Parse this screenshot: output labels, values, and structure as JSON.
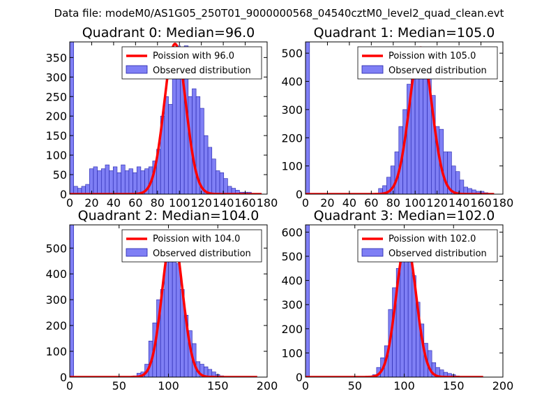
{
  "figure": {
    "suptitle": "Data file: modeM0/AS1G05_250T01_9000000568_04540cztM0_level2_quad_clean.evt",
    "colors": {
      "hist_fill": "#7f7ff5",
      "hist_edge": "#2222aa",
      "poisson_line": "#ff0000"
    }
  },
  "chart_data": [
    {
      "type": "bar",
      "title": "Quadrant 0: Median=96.0",
      "legend": [
        "Poission with 96.0",
        "Observed distribution"
      ],
      "legend_position": "top-right",
      "xlim": [
        0,
        180
      ],
      "ylim": [
        0,
        390
      ],
      "xticks": [
        0,
        20,
        40,
        60,
        80,
        100,
        120,
        140,
        160,
        180
      ],
      "yticks": [
        0,
        50,
        100,
        150,
        200,
        250,
        300,
        350
      ],
      "bin_width": 3.6,
      "bins_start": [
        0,
        3.6,
        7.2,
        10.8,
        14.4,
        18,
        21.6,
        25.2,
        28.8,
        32.4,
        36,
        39.6,
        43.2,
        46.8,
        50.4,
        54,
        57.6,
        61.2,
        64.8,
        68.4,
        72,
        75.6,
        79.2,
        82.8,
        86.4,
        90,
        93.6,
        97.2,
        100.8,
        104.4,
        108,
        111.6,
        115.2,
        118.8,
        122.4,
        126,
        129.6,
        133.2,
        136.8,
        140.4,
        144,
        147.6,
        151.2,
        154.8,
        158.4,
        162,
        165.6
      ],
      "counts": [
        390,
        20,
        15,
        20,
        25,
        65,
        70,
        60,
        65,
        75,
        60,
        70,
        55,
        75,
        60,
        65,
        55,
        70,
        60,
        65,
        70,
        85,
        115,
        200,
        250,
        230,
        300,
        380,
        310,
        380,
        250,
        270,
        250,
        220,
        150,
        120,
        90,
        60,
        55,
        40,
        20,
        15,
        10,
        5,
        5,
        5,
        0
      ],
      "poisson_mu": 96.0,
      "poisson_peak": 385,
      "poisson_x_range": [
        0,
        175
      ]
    },
    {
      "type": "bar",
      "title": "Quadrant 1: Median=105.0",
      "legend": [
        "Poission with 105.0",
        "Observed distribution"
      ],
      "legend_position": "top-right",
      "xlim": [
        0,
        180
      ],
      "ylim": [
        0,
        540
      ],
      "xticks": [
        0,
        20,
        40,
        60,
        80,
        100,
        120,
        140,
        160,
        180
      ],
      "yticks": [
        0,
        100,
        200,
        300,
        400,
        500
      ],
      "bin_width": 3.7,
      "bins_start": [
        0,
        66.6,
        70.3,
        74,
        77.7,
        81.4,
        85.1,
        88.8,
        92.5,
        96.2,
        99.9,
        103.6,
        107.3,
        111,
        114.7,
        118.4,
        122.1,
        125.8,
        129.5,
        133.2,
        136.9,
        140.6,
        144.3,
        148,
        151.7,
        155.4,
        159.1,
        162.8
      ],
      "counts": [
        540,
        20,
        30,
        60,
        100,
        150,
        240,
        300,
        390,
        440,
        480,
        420,
        520,
        440,
        350,
        240,
        230,
        150,
        150,
        100,
        80,
        50,
        25,
        20,
        15,
        10,
        10,
        5
      ],
      "poisson_mu": 105.0,
      "poisson_peak": 520,
      "poisson_x_range": [
        0,
        172
      ]
    },
    {
      "type": "bar",
      "title": "Quadrant 2: Median=104.0",
      "legend": [
        "Poission with 104.0",
        "Observed distribution"
      ],
      "legend_position": "top-right",
      "xlim": [
        0,
        200
      ],
      "ylim": [
        0,
        590
      ],
      "xticks": [
        0,
        50,
        100,
        150,
        200
      ],
      "yticks": [
        0,
        100,
        200,
        300,
        400,
        500
      ],
      "bin_width": 4,
      "bins_start": [
        0,
        64,
        68,
        72,
        76,
        80,
        84,
        88,
        92,
        96,
        100,
        104,
        108,
        112,
        116,
        120,
        124,
        128,
        132,
        136,
        140,
        144,
        148,
        152
      ],
      "counts": [
        590,
        5,
        15,
        20,
        50,
        140,
        210,
        300,
        340,
        460,
        510,
        560,
        440,
        340,
        240,
        180,
        130,
        60,
        50,
        40,
        30,
        20,
        10,
        5
      ],
      "poisson_mu": 104.0,
      "poisson_peak": 560,
      "poisson_x_range": [
        0,
        190
      ]
    },
    {
      "type": "bar",
      "title": "Quadrant 3: Median=102.0",
      "legend": [
        "Poission with 102.0",
        "Observed distribution"
      ],
      "legend_position": "top-right",
      "xlim": [
        0,
        200
      ],
      "ylim": [
        0,
        630
      ],
      "xticks": [
        0,
        50,
        100,
        150,
        200
      ],
      "yticks": [
        0,
        100,
        200,
        300,
        400,
        500,
        600
      ],
      "bin_width": 4,
      "bins_start": [
        0,
        64,
        68,
        72,
        76,
        80,
        84,
        88,
        92,
        96,
        100,
        104,
        108,
        112,
        116,
        120,
        124,
        128,
        132,
        136,
        140,
        144,
        148,
        152
      ],
      "counts": [
        630,
        5,
        10,
        40,
        80,
        130,
        280,
        370,
        450,
        500,
        560,
        550,
        420,
        310,
        220,
        140,
        110,
        60,
        40,
        30,
        20,
        15,
        10,
        5
      ],
      "poisson_mu": 102.0,
      "poisson_peak": 560,
      "poisson_x_range": [
        0,
        180
      ]
    }
  ]
}
